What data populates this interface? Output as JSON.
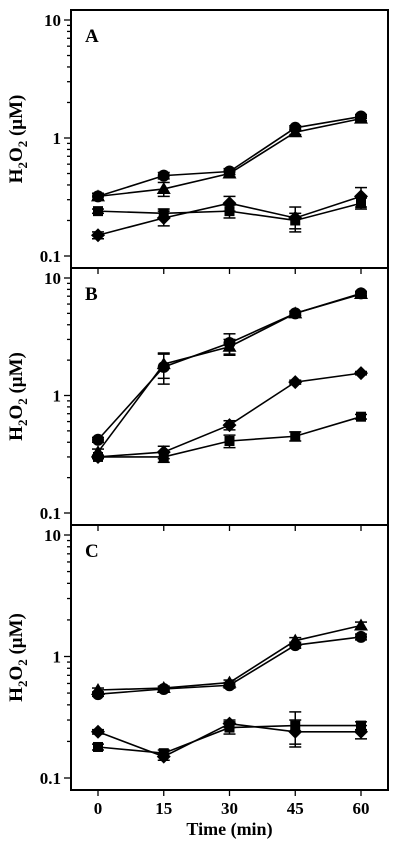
{
  "chart_data": [
    {
      "type": "line",
      "panel_label": "A",
      "ylabel": "H2O2 (μM)",
      "xlabel": "",
      "y_scale": "log",
      "ylim": [
        0.1,
        10
      ],
      "xlim": [
        0,
        60
      ],
      "x": [
        0,
        15,
        30,
        45,
        60
      ],
      "y_ticks": [
        "0.1",
        "1",
        "10"
      ],
      "x_ticks": [],
      "series": [
        {
          "marker": "circle",
          "values": [
            0.32,
            0.48,
            0.52,
            1.22,
            1.52
          ],
          "errors": [
            0.02,
            0.03,
            0.03,
            0.05,
            0.06
          ]
        },
        {
          "marker": "triangle",
          "values": [
            0.32,
            0.37,
            0.5,
            1.12,
            1.46
          ],
          "errors": [
            0.02,
            0.05,
            0.03,
            0.05,
            0.06
          ]
        },
        {
          "marker": "square",
          "values": [
            0.24,
            0.23,
            0.24,
            0.2,
            0.28
          ],
          "errors": [
            0.01,
            0.02,
            0.03,
            0.03,
            0.03
          ]
        },
        {
          "marker": "diamond",
          "values": [
            0.15,
            0.21,
            0.28,
            0.21,
            0.32
          ],
          "errors": [
            0.01,
            0.03,
            0.04,
            0.05,
            0.06
          ]
        }
      ]
    },
    {
      "type": "line",
      "panel_label": "B",
      "ylabel": "H2O2 (μM)",
      "xlabel": "",
      "y_scale": "log",
      "ylim": [
        0.1,
        10
      ],
      "xlim": [
        0,
        60
      ],
      "x": [
        0,
        15,
        30,
        45,
        60
      ],
      "y_ticks": [
        "0.1",
        "1",
        "10"
      ],
      "x_ticks": [],
      "series": [
        {
          "marker": "circle",
          "values": [
            0.42,
            1.75,
            2.8,
            5.0,
            7.4
          ],
          "errors": [
            0.02,
            0.5,
            0.55,
            0.2,
            0.3
          ]
        },
        {
          "marker": "triangle",
          "values": [
            0.33,
            1.85,
            2.6,
            5.0,
            7.3
          ],
          "errors": [
            0.02,
            0.45,
            0.4,
            0.2,
            0.3
          ]
        },
        {
          "marker": "diamond",
          "values": [
            0.3,
            0.33,
            0.56,
            1.3,
            1.55
          ],
          "errors": [
            0.01,
            0.04,
            0.05,
            0.05,
            0.05
          ]
        },
        {
          "marker": "square",
          "values": [
            0.3,
            0.3,
            0.41,
            0.45,
            0.66
          ],
          "errors": [
            0.01,
            0.03,
            0.05,
            0.04,
            0.03
          ]
        }
      ]
    },
    {
      "type": "line",
      "panel_label": "C",
      "ylabel": "H2O2 (μM)",
      "xlabel": "Time (min)",
      "y_scale": "log",
      "ylim": [
        0.1,
        10
      ],
      "xlim": [
        0,
        60
      ],
      "x": [
        0,
        15,
        30,
        45,
        60
      ],
      "y_ticks": [
        "0.1",
        "1",
        "10"
      ],
      "x_ticks": [
        "0",
        "15",
        "30",
        "45",
        "60"
      ],
      "series": [
        {
          "marker": "triangle",
          "values": [
            0.53,
            0.55,
            0.61,
            1.35,
            1.8
          ],
          "errors": [
            0.02,
            0.02,
            0.03,
            0.08,
            0.12
          ]
        },
        {
          "marker": "circle",
          "values": [
            0.49,
            0.54,
            0.58,
            1.24,
            1.45
          ],
          "errors": [
            0.02,
            0.02,
            0.03,
            0.07,
            0.08
          ]
        },
        {
          "marker": "square",
          "values": [
            0.18,
            0.16,
            0.26,
            0.27,
            0.27
          ],
          "errors": [
            0.01,
            0.01,
            0.03,
            0.08,
            0.02
          ]
        },
        {
          "marker": "diamond",
          "values": [
            0.24,
            0.15,
            0.28,
            0.24,
            0.24
          ],
          "errors": [
            0.01,
            0.01,
            0.02,
            0.06,
            0.03
          ]
        }
      ]
    }
  ]
}
